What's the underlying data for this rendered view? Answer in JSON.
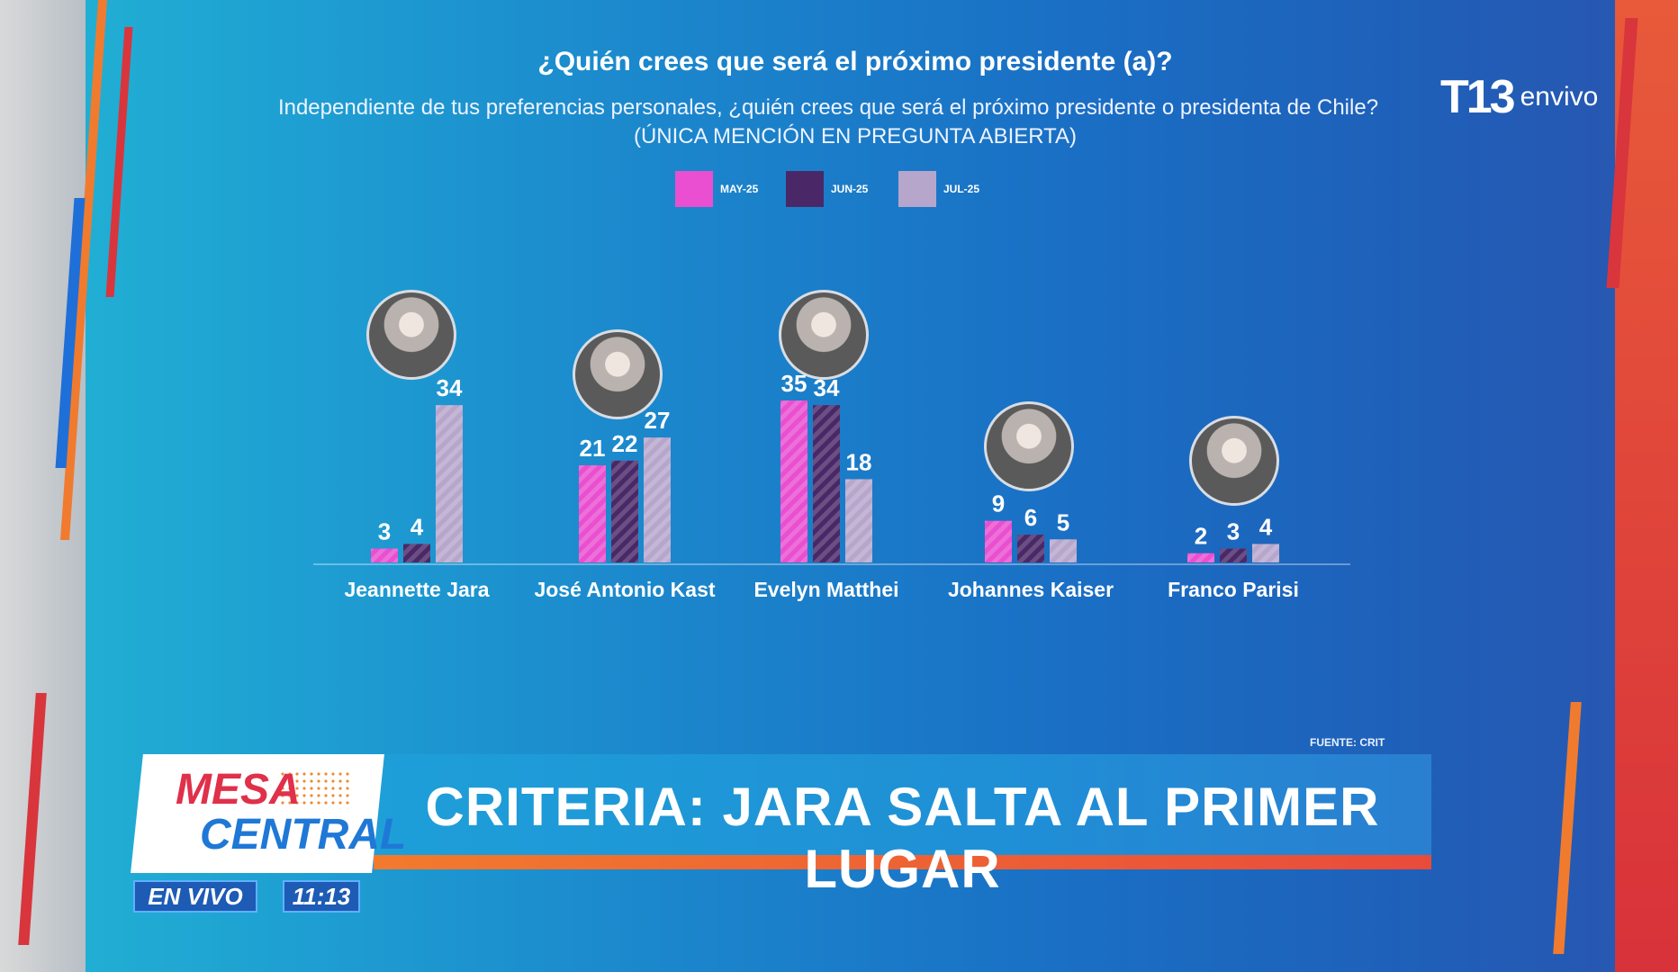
{
  "header": {
    "title": "¿Quién crees que será el próximo presidente (a)?",
    "subtitle": "Independiente de tus preferencias personales, ¿quién crees que será el próximo presidente o presidenta de Chile?",
    "subtitle2": "(ÚNICA MENCIÓN EN PREGUNTA ABIERTA)"
  },
  "logo": {
    "t13": "T13",
    "envivo": "envivo"
  },
  "chart_data": {
    "type": "bar",
    "categories": [
      "Jeannette Jara",
      "José Antonio Kast",
      "Evelyn Matthei",
      "Johannes Kaiser",
      "Franco Parisi"
    ],
    "series": [
      {
        "name": "MAY-25",
        "values": [
          3,
          21,
          35,
          9,
          2
        ],
        "color": "#e94fd0"
      },
      {
        "name": "JUN-25",
        "values": [
          4,
          22,
          34,
          6,
          3
        ],
        "color": "#4a2868"
      },
      {
        "name": "JUL-25",
        "values": [
          34,
          27,
          18,
          5,
          4
        ],
        "color": "#b7a6cc"
      }
    ],
    "ylim": [
      0,
      40
    ],
    "legend_position": "top"
  },
  "source": "FUENTE: CRIT",
  "lower_third": {
    "headline": "CRITERIA: JARA SALTA AL PRIMER LUGAR",
    "show_line1": "MESA",
    "show_line2": "CENTRAL",
    "live": "EN VIVO",
    "time": "11:13"
  }
}
